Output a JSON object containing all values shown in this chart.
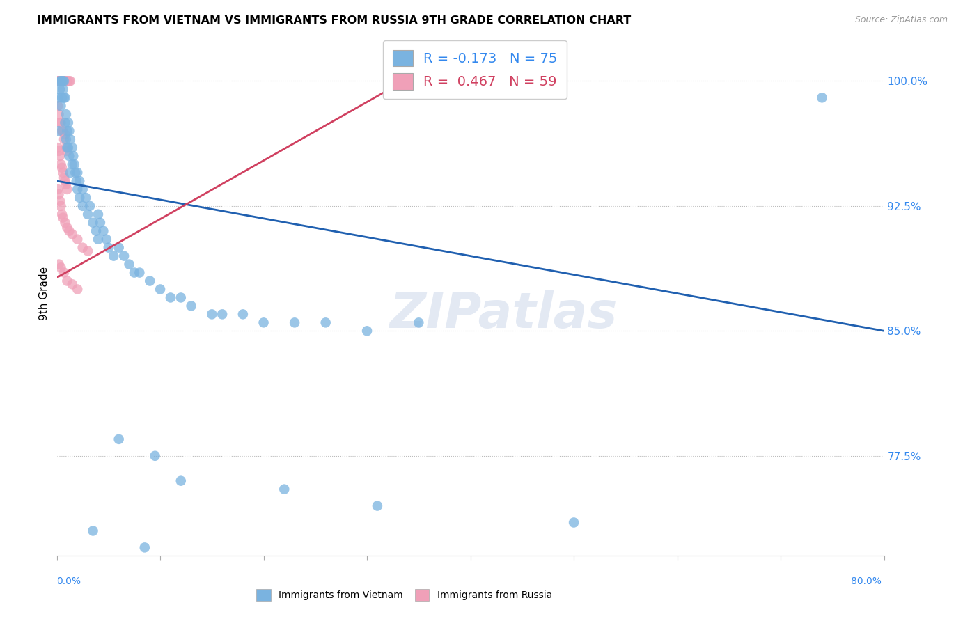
{
  "title": "IMMIGRANTS FROM VIETNAM VS IMMIGRANTS FROM RUSSIA 9TH GRADE CORRELATION CHART",
  "source": "Source: ZipAtlas.com",
  "ylabel": "9th Grade",
  "xlim": [
    0.0,
    0.8
  ],
  "ylim": [
    0.715,
    1.03
  ],
  "watermark": "ZIPatlas",
  "legend_vietnam": "R = -0.173   N = 75",
  "legend_russia": "R =  0.467   N = 59",
  "vietnam_color": "#7ab3e0",
  "russia_color": "#f0a0b8",
  "vietnam_line_color": "#2060b0",
  "russia_line_color": "#d04060",
  "vietnam_scatter": [
    [
      0.001,
      0.99
    ],
    [
      0.002,
      0.97
    ],
    [
      0.003,
      1.0
    ],
    [
      0.003,
      0.995
    ],
    [
      0.004,
      1.0
    ],
    [
      0.004,
      0.985
    ],
    [
      0.005,
      1.0
    ],
    [
      0.005,
      0.99
    ],
    [
      0.006,
      1.0
    ],
    [
      0.006,
      0.995
    ],
    [
      0.007,
      1.0
    ],
    [
      0.007,
      0.99
    ],
    [
      0.008,
      0.99
    ],
    [
      0.008,
      0.975
    ],
    [
      0.009,
      0.98
    ],
    [
      0.009,
      0.965
    ],
    [
      0.01,
      0.97
    ],
    [
      0.01,
      0.96
    ],
    [
      0.011,
      0.975
    ],
    [
      0.011,
      0.96
    ],
    [
      0.012,
      0.97
    ],
    [
      0.012,
      0.955
    ],
    [
      0.013,
      0.965
    ],
    [
      0.013,
      0.945
    ],
    [
      0.015,
      0.96
    ],
    [
      0.015,
      0.95
    ],
    [
      0.016,
      0.955
    ],
    [
      0.017,
      0.95
    ],
    [
      0.018,
      0.945
    ],
    [
      0.019,
      0.94
    ],
    [
      0.02,
      0.945
    ],
    [
      0.02,
      0.935
    ],
    [
      0.022,
      0.94
    ],
    [
      0.022,
      0.93
    ],
    [
      0.025,
      0.935
    ],
    [
      0.025,
      0.925
    ],
    [
      0.028,
      0.93
    ],
    [
      0.03,
      0.92
    ],
    [
      0.032,
      0.925
    ],
    [
      0.035,
      0.915
    ],
    [
      0.038,
      0.91
    ],
    [
      0.04,
      0.92
    ],
    [
      0.04,
      0.905
    ],
    [
      0.042,
      0.915
    ],
    [
      0.045,
      0.91
    ],
    [
      0.048,
      0.905
    ],
    [
      0.05,
      0.9
    ],
    [
      0.055,
      0.895
    ],
    [
      0.06,
      0.9
    ],
    [
      0.065,
      0.895
    ],
    [
      0.07,
      0.89
    ],
    [
      0.075,
      0.885
    ],
    [
      0.08,
      0.885
    ],
    [
      0.09,
      0.88
    ],
    [
      0.1,
      0.875
    ],
    [
      0.11,
      0.87
    ],
    [
      0.12,
      0.87
    ],
    [
      0.13,
      0.865
    ],
    [
      0.15,
      0.86
    ],
    [
      0.16,
      0.86
    ],
    [
      0.18,
      0.86
    ],
    [
      0.2,
      0.855
    ],
    [
      0.23,
      0.855
    ],
    [
      0.26,
      0.855
    ],
    [
      0.3,
      0.85
    ],
    [
      0.35,
      0.855
    ],
    [
      0.06,
      0.785
    ],
    [
      0.095,
      0.775
    ],
    [
      0.12,
      0.76
    ],
    [
      0.22,
      0.755
    ],
    [
      0.31,
      0.745
    ],
    [
      0.035,
      0.73
    ],
    [
      0.085,
      0.72
    ],
    [
      0.5,
      0.735
    ],
    [
      0.74,
      0.99
    ]
  ],
  "russia_scatter": [
    [
      0.001,
      1.0
    ],
    [
      0.001,
      1.0
    ],
    [
      0.002,
      1.0
    ],
    [
      0.002,
      1.0
    ],
    [
      0.003,
      1.0
    ],
    [
      0.003,
      1.0
    ],
    [
      0.004,
      1.0
    ],
    [
      0.004,
      1.0
    ],
    [
      0.005,
      1.0
    ],
    [
      0.005,
      1.0
    ],
    [
      0.006,
      1.0
    ],
    [
      0.006,
      1.0
    ],
    [
      0.007,
      1.0
    ],
    [
      0.007,
      1.0
    ],
    [
      0.008,
      1.0
    ],
    [
      0.009,
      1.0
    ],
    [
      0.01,
      1.0
    ],
    [
      0.01,
      1.0
    ],
    [
      0.012,
      1.0
    ],
    [
      0.013,
      1.0
    ],
    [
      0.001,
      0.985
    ],
    [
      0.002,
      0.98
    ],
    [
      0.003,
      0.975
    ],
    [
      0.004,
      0.975
    ],
    [
      0.005,
      0.97
    ],
    [
      0.006,
      0.97
    ],
    [
      0.007,
      0.965
    ],
    [
      0.008,
      0.968
    ],
    [
      0.009,
      0.96
    ],
    [
      0.01,
      0.958
    ],
    [
      0.001,
      0.96
    ],
    [
      0.002,
      0.958
    ],
    [
      0.003,
      0.955
    ],
    [
      0.004,
      0.95
    ],
    [
      0.005,
      0.948
    ],
    [
      0.006,
      0.945
    ],
    [
      0.007,
      0.942
    ],
    [
      0.008,
      0.94
    ],
    [
      0.009,
      0.938
    ],
    [
      0.01,
      0.935
    ],
    [
      0.001,
      0.935
    ],
    [
      0.002,
      0.932
    ],
    [
      0.003,
      0.928
    ],
    [
      0.004,
      0.925
    ],
    [
      0.005,
      0.92
    ],
    [
      0.006,
      0.918
    ],
    [
      0.008,
      0.915
    ],
    [
      0.01,
      0.912
    ],
    [
      0.012,
      0.91
    ],
    [
      0.015,
      0.908
    ],
    [
      0.02,
      0.905
    ],
    [
      0.025,
      0.9
    ],
    [
      0.03,
      0.898
    ],
    [
      0.002,
      0.89
    ],
    [
      0.004,
      0.888
    ],
    [
      0.007,
      0.885
    ],
    [
      0.01,
      0.88
    ],
    [
      0.015,
      0.878
    ],
    [
      0.02,
      0.875
    ]
  ],
  "vietnam_trend_x": [
    0.0,
    0.8
  ],
  "vietnam_trend_y": [
    0.94,
    0.85
  ],
  "russia_trend_x": [
    0.0,
    0.35
  ],
  "russia_trend_y": [
    0.882,
    1.005
  ]
}
